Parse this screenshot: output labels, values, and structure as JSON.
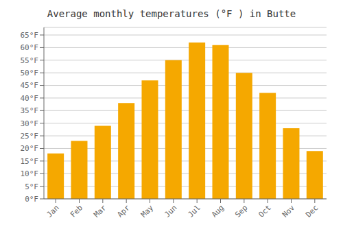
{
  "chart_data": {
    "type": "bar",
    "title": "Average monthly temperatures (°F ) in Butte",
    "categories": [
      "Jan",
      "Feb",
      "Mar",
      "Apr",
      "May",
      "Jun",
      "Jul",
      "Aug",
      "Sep",
      "Oct",
      "Nov",
      "Dec"
    ],
    "values": [
      18,
      23,
      29,
      38,
      47,
      55,
      62,
      61,
      50,
      42,
      28,
      19
    ],
    "color": "#F5A800",
    "ylim": [
      0,
      68
    ],
    "yticks": [
      {
        "value": 0,
        "label": "0°F"
      },
      {
        "value": 5,
        "label": "5°F"
      },
      {
        "value": 10,
        "label": "10°F"
      },
      {
        "value": 15,
        "label": "15°F"
      },
      {
        "value": 20,
        "label": "20°F"
      },
      {
        "value": 25,
        "label": "25°F"
      },
      {
        "value": 30,
        "label": "30°F"
      },
      {
        "value": 35,
        "label": "35°F"
      },
      {
        "value": 40,
        "label": "40°F"
      },
      {
        "value": 45,
        "label": "45°F"
      },
      {
        "value": 50,
        "label": "50°F"
      },
      {
        "value": 55,
        "label": "55°F"
      },
      {
        "value": 60,
        "label": "60°F"
      },
      {
        "value": 65,
        "label": "65°F"
      }
    ],
    "grid": true
  }
}
